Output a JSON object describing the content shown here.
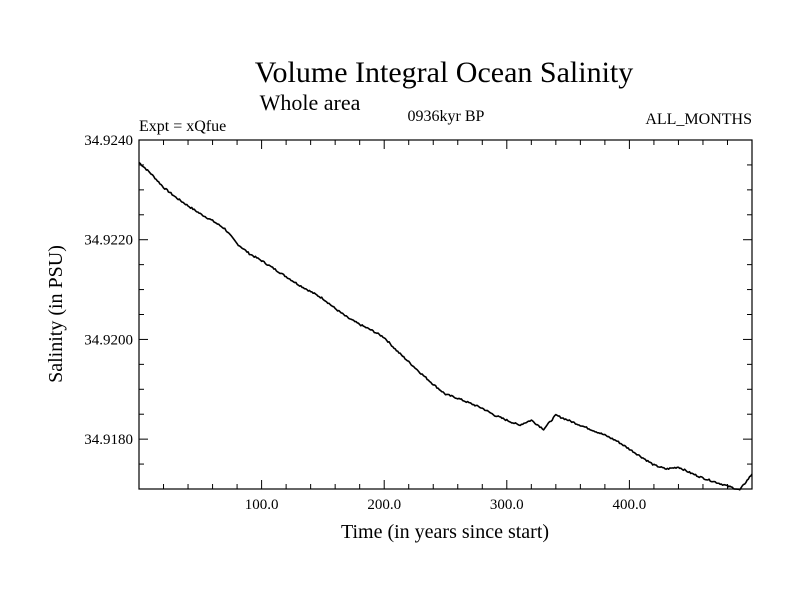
{
  "chart_data": {
    "type": "line",
    "title": "Volume Integral Ocean Salinity",
    "subtitle": "Whole area",
    "annotations": {
      "left": "Expt = xQfue",
      "center": "0936kyr BP",
      "right": "ALL_MONTHS"
    },
    "xlabel": "Time (in years since start)",
    "ylabel": "Salinity (in PSU)",
    "xlim": [
      0,
      500
    ],
    "ylim": [
      34.917,
      34.924
    ],
    "x_ticks": [
      100,
      200,
      300,
      400
    ],
    "x_tick_labels": [
      "100.0",
      "200.0",
      "300.0",
      "400.0"
    ],
    "y_ticks": [
      34.918,
      34.92,
      34.922,
      34.924
    ],
    "y_tick_labels": [
      "34.9180",
      "34.9200",
      "34.9220",
      "34.9240"
    ],
    "grid": false,
    "series": [
      {
        "name": "Salinity",
        "color": "#000000",
        "x": [
          0,
          10,
          20,
          30,
          40,
          50,
          60,
          70,
          80,
          90,
          100,
          110,
          120,
          130,
          140,
          150,
          160,
          170,
          180,
          190,
          200,
          210,
          220,
          230,
          240,
          250,
          260,
          270,
          280,
          290,
          300,
          310,
          320,
          330,
          340,
          350,
          360,
          370,
          380,
          390,
          400,
          410,
          420,
          430,
          440,
          450,
          460,
          470,
          480,
          490,
          500
        ],
        "values": [
          34.92355,
          34.92332,
          34.92305,
          34.92285,
          34.92268,
          34.92252,
          34.92238,
          34.92222,
          34.92192,
          34.92172,
          34.92158,
          34.92142,
          34.92126,
          34.9211,
          34.92096,
          34.92082,
          34.92062,
          34.92044,
          34.9203,
          34.92018,
          34.92004,
          34.91978,
          34.91955,
          34.91932,
          34.9191,
          34.9189,
          34.91882,
          34.91872,
          34.91862,
          34.91848,
          34.91838,
          34.91828,
          34.91838,
          34.9182,
          34.91848,
          34.91838,
          34.91828,
          34.91818,
          34.91808,
          34.91796,
          34.9178,
          34.91764,
          34.91748,
          34.9174,
          34.91744,
          34.91732,
          34.91722,
          34.91714,
          34.91706,
          34.91698,
          34.9173
        ]
      }
    ]
  }
}
